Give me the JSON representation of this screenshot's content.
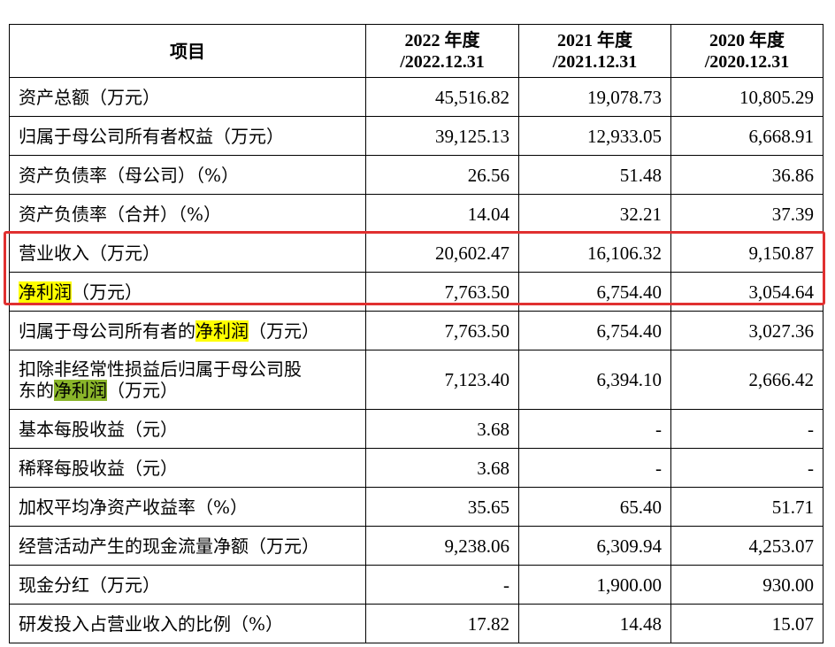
{
  "table": {
    "header": {
      "item": "项目",
      "col2022_line1": "2022 年度",
      "col2022_line2": "/2022.12.31",
      "col2021_line1": "2021 年度",
      "col2021_line2": "/2021.12.31",
      "col2020_line1": "2020 年度",
      "col2020_line2": "/2020.12.31"
    },
    "rows": [
      {
        "label": "资产总额（万元）",
        "v2022": "45,516.82",
        "v2021": "19,078.73",
        "v2020": "10,805.29"
      },
      {
        "label": "归属于母公司所有者权益（万元）",
        "v2022": "39,125.13",
        "v2021": "12,933.05",
        "v2020": "6,668.91"
      },
      {
        "label": "资产负债率（母公司）（%）",
        "v2022": "26.56",
        "v2021": "51.48",
        "v2020": "36.86"
      },
      {
        "label": "资产负债率（合并）（%）",
        "v2022": "14.04",
        "v2021": "32.21",
        "v2020": "37.39"
      },
      {
        "label": "营业收入（万元）",
        "v2022": "20,602.47",
        "v2021": "16,106.32",
        "v2020": "9,150.87"
      },
      {
        "label_hl": "净利润",
        "label_rest": "（万元）",
        "v2022": "7,763.50",
        "v2021": "6,754.40",
        "v2020": "3,054.64"
      },
      {
        "label_pre": "归属于母公司所有者的",
        "label_hl": "净利润",
        "label_rest": "（万元）",
        "v2022": "7,763.50",
        "v2021": "6,754.40",
        "v2020": "3,027.36"
      },
      {
        "label_line1": "扣除非经常性损益后归属于母公司股",
        "label_pre": "东的",
        "label_hl": "净利润",
        "label_rest": "（万元）",
        "v2022": "7,123.40",
        "v2021": "6,394.10",
        "v2020": "2,666.42"
      },
      {
        "label": "基本每股收益（元）",
        "v2022": "3.68",
        "v2021": "-",
        "v2020": "-"
      },
      {
        "label": "稀释每股收益（元）",
        "v2022": "3.68",
        "v2021": "-",
        "v2020": "-"
      },
      {
        "label": "加权平均净资产收益率（%）",
        "v2022": "35.65",
        "v2021": "65.40",
        "v2020": "51.71"
      },
      {
        "label": "经营活动产生的现金流量净额（万元）",
        "v2022": "9,238.06",
        "v2021": "6,309.94",
        "v2020": "4,253.07"
      },
      {
        "label": "现金分红（万元）",
        "v2022": "-",
        "v2021": "1,900.00",
        "v2020": "930.00"
      },
      {
        "label": "研发投入占营业收入的比例（%）",
        "v2022": "17.82",
        "v2021": "14.48",
        "v2020": "15.07"
      }
    ]
  },
  "colors": {
    "highlight_yellow": "#ffff00",
    "highlight_green": "#8ab52a",
    "annotation_red": "#e03030"
  }
}
